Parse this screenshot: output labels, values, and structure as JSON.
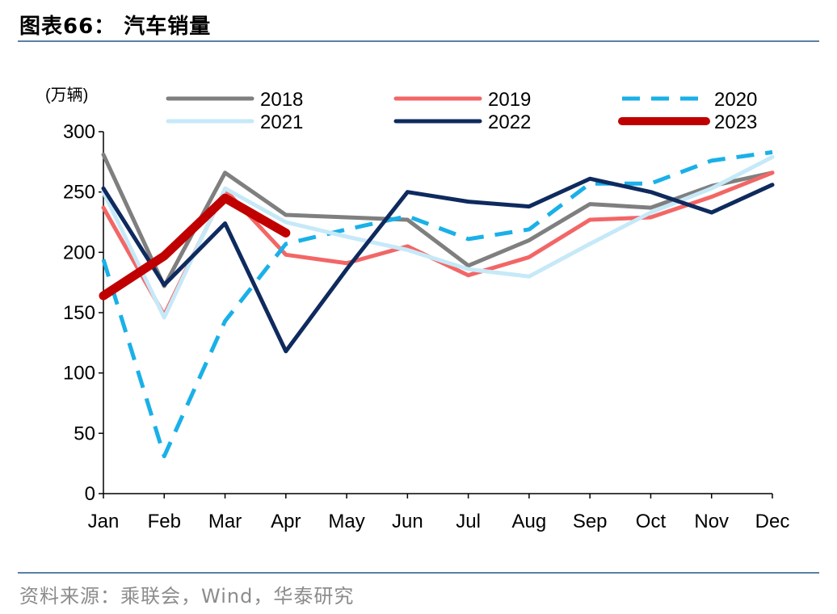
{
  "header": {
    "title": "图表66：  汽车销量"
  },
  "source": "资料来源：乘联会，Wind，华泰研究",
  "chart_data": {
    "type": "line",
    "title": "",
    "unit_label": "(万辆)",
    "xlabel": "",
    "ylabel": "",
    "categories": [
      "Jan",
      "Feb",
      "Mar",
      "Apr",
      "May",
      "Jun",
      "Jul",
      "Aug",
      "Sep",
      "Oct",
      "Nov",
      "Dec"
    ],
    "ylim": [
      0,
      300
    ],
    "yticks": [
      0,
      50,
      100,
      150,
      200,
      250,
      300
    ],
    "grid": false,
    "legend_position": "top",
    "series": [
      {
        "name": "2018",
        "color": "#7f7f7f",
        "dash": "solid",
        "width": 5,
        "values": [
          281,
          172,
          266,
          231,
          null,
          227,
          189,
          210,
          240,
          237,
          255,
          266
        ]
      },
      {
        "name": "2019",
        "color": "#f36666",
        "dash": "solid",
        "width": 5,
        "values": [
          237,
          148,
          252,
          198,
          191,
          205,
          181,
          196,
          227,
          229,
          246,
          266
        ]
      },
      {
        "name": "2020",
        "color": "#1ab0e8",
        "dash": "dashed",
        "width": 5,
        "values": [
          194,
          31,
          143,
          207,
          219,
          230,
          211,
          219,
          257,
          257,
          276,
          283
        ]
      },
      {
        "name": "2021",
        "color": "#c6e9f8",
        "dash": "solid",
        "width": 5,
        "values": [
          250,
          146,
          253,
          225,
          213,
          202,
          186,
          180,
          207,
          233,
          253,
          279
        ]
      },
      {
        "name": "2022",
        "color": "#0e2a5e",
        "dash": "solid",
        "width": 5,
        "values": [
          253,
          173,
          224,
          118,
          186,
          250,
          242,
          238,
          261,
          250,
          233,
          256
        ]
      },
      {
        "name": "2023",
        "color": "#c00000",
        "dash": "solid",
        "width": 11,
        "values": [
          164,
          197,
          245,
          216,
          null,
          null,
          null,
          null,
          null,
          null,
          null,
          null
        ]
      }
    ]
  }
}
